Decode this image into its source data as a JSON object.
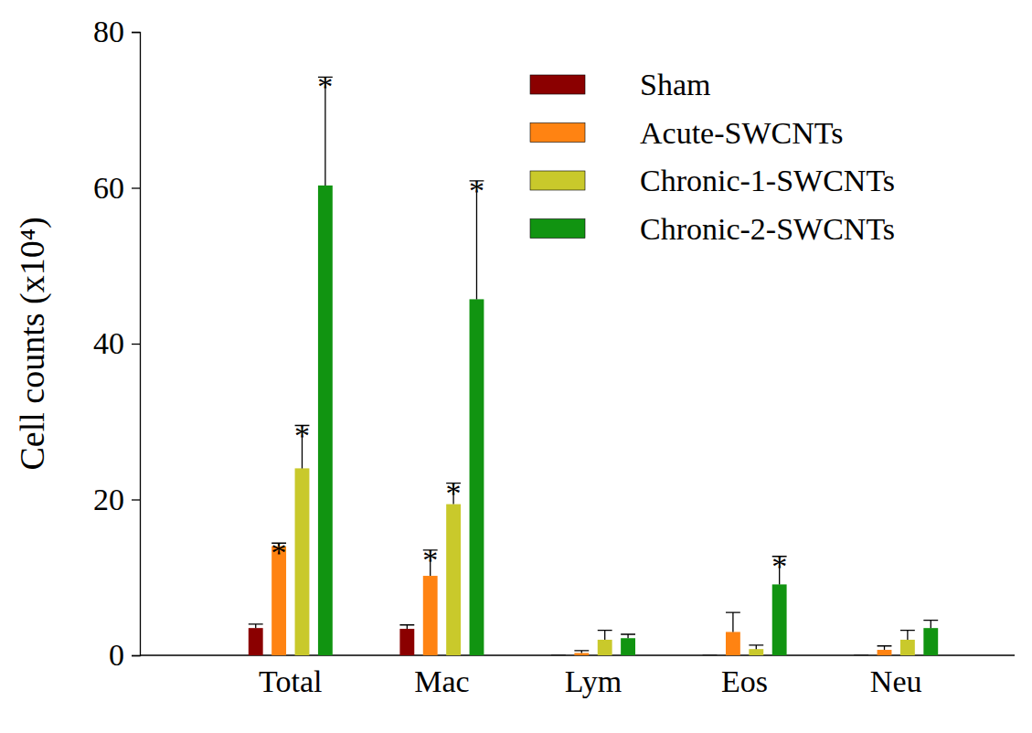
{
  "chart_data": {
    "type": "bar",
    "y_label": "Cell counts (x10⁴)",
    "categories": [
      "Total",
      "Mac",
      "Lym",
      "Eos",
      "Neu"
    ],
    "series": [
      {
        "name": "Sham",
        "color": "#8b0000",
        "values": [
          3.5,
          3.4,
          0,
          0,
          0
        ],
        "errors": [
          0.5,
          0.5,
          0,
          0,
          0
        ]
      },
      {
        "name": "Acute-SWCNTs",
        "color": "#ff8312",
        "values": [
          14,
          10.2,
          0.3,
          3,
          0.7
        ],
        "errors": [
          0.4,
          3.3,
          0.3,
          2.5,
          0.5
        ]
      },
      {
        "name": "Chronic-1-SWCNTs",
        "color": "#c9c92b",
        "values": [
          24,
          19.4,
          2,
          0.8,
          2
        ],
        "errors": [
          5.5,
          2.7,
          1.2,
          0.5,
          1.2
        ]
      },
      {
        "name": "Chronic-2-SWCNTs",
        "color": "#119411",
        "values": [
          60.3,
          45.7,
          2.2,
          9.1,
          3.5
        ],
        "errors": [
          13.9,
          15.2,
          0.5,
          3.6,
          1
        ]
      }
    ],
    "annotations": [
      {
        "text": "*",
        "series": 1,
        "category": 0
      },
      {
        "text": "*",
        "series": 2,
        "category": 0
      },
      {
        "text": "*",
        "series": 3,
        "category": 0
      },
      {
        "text": "*",
        "series": 1,
        "category": 1
      },
      {
        "text": "*",
        "series": 2,
        "category": 1
      },
      {
        "text": "*",
        "series": 3,
        "category": 1
      },
      {
        "text": "*",
        "series": 3,
        "category": 3
      }
    ],
    "ylim": [
      0,
      80
    ],
    "yticks": [
      0,
      20,
      40,
      60,
      80
    ],
    "legend": "upper right",
    "grid": false
  }
}
